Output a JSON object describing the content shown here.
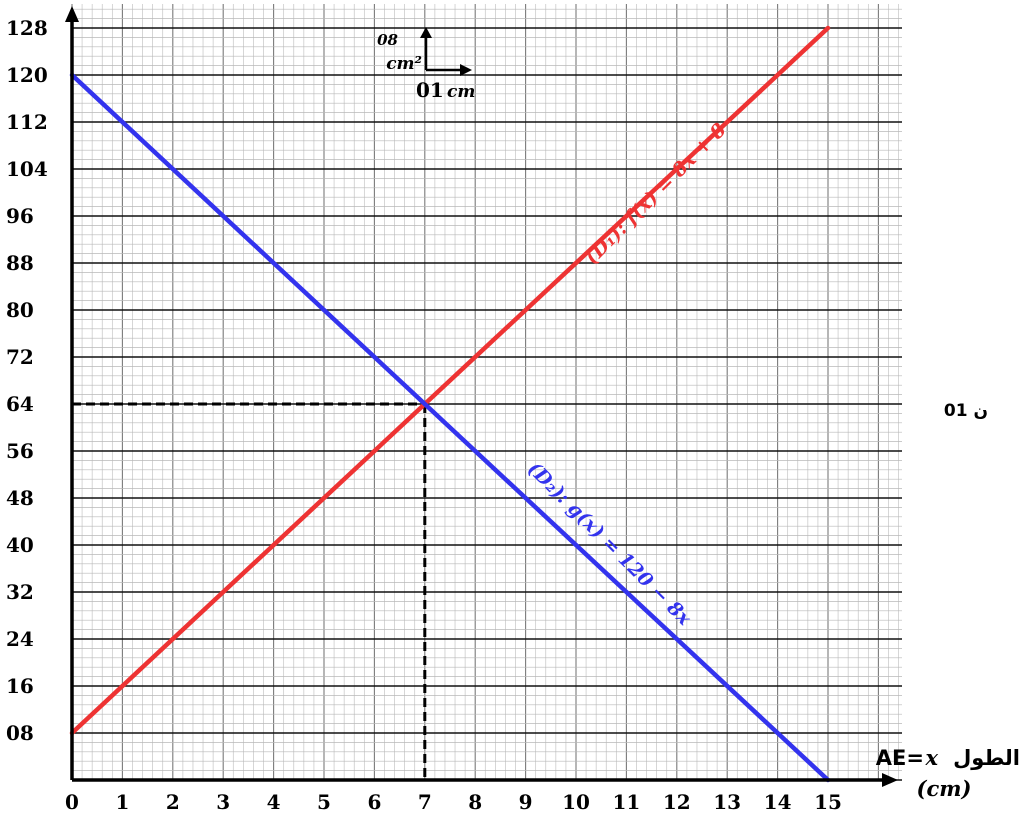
{
  "chart_data": {
    "type": "line",
    "x": [
      0,
      15
    ],
    "xlim": [
      0,
      15
    ],
    "ylim": [
      0,
      128
    ],
    "xticks": [
      "0",
      "1",
      "2",
      "3",
      "4",
      "5",
      "6",
      "7",
      "8",
      "9",
      "10",
      "11",
      "12",
      "13",
      "14",
      "15"
    ],
    "yticks": [
      "08",
      "16",
      "24",
      "32",
      "40",
      "48",
      "56",
      "64",
      "72",
      "80",
      "88",
      "96",
      "104",
      "112",
      "120",
      "128"
    ],
    "series": [
      {
        "name": "(D₁): f(x) = 8x + 8",
        "color": "#ee3333",
        "x": [
          0,
          15
        ],
        "y": [
          8,
          128
        ]
      },
      {
        "name": "(D₂): g(x) = 120 − 8x",
        "color": "#3333ee",
        "x": [
          0,
          15
        ],
        "y": [
          120,
          0
        ]
      }
    ],
    "intersection": {
      "x": 7,
      "y": 64
    },
    "grid": true,
    "xlabel_prefix": "الطول",
    "xlabel_eq": "AE=",
    "xlabel_var": "x",
    "xunit": "(cm)"
  },
  "scale_legend": {
    "y_value": "08",
    "y_unit": "cm²",
    "x_value": "01",
    "x_unit": "cm"
  },
  "side_note": "01 ن"
}
